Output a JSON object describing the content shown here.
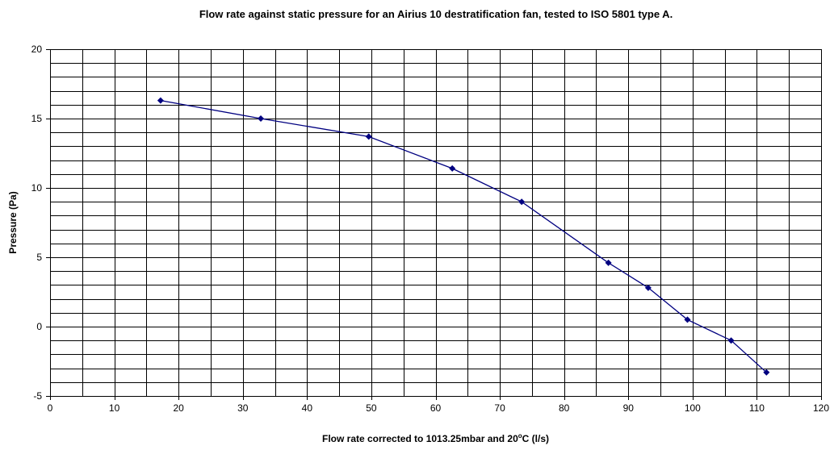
{
  "chart_data": {
    "type": "line",
    "title": "Flow rate against static pressure for an Airius 10 destratification fan, tested to ISO 5801 type A.",
    "xlabel": "Flow rate corrected to 1013.25mbar and 20",
    "xlabel_sup": "o",
    "xlabel_tail": "C (l/s)",
    "ylabel": "Pressure (Pa)",
    "xlim": [
      0,
      120
    ],
    "ylim": [
      -5,
      20
    ],
    "x_major_ticks": [
      0,
      10,
      20,
      30,
      40,
      50,
      60,
      70,
      80,
      90,
      100,
      110,
      120
    ],
    "x_minor_step": 5,
    "y_major_ticks": [
      -5,
      0,
      5,
      10,
      15,
      20
    ],
    "y_minor_step": 1,
    "grid": true,
    "series": [
      {
        "x": [
          17.2,
          32.8,
          49.6,
          62.6,
          73.4,
          86.9,
          93.1,
          99.2,
          106.0,
          111.5
        ],
        "y": [
          16.3,
          15.0,
          13.7,
          11.4,
          9.0,
          4.6,
          2.8,
          0.5,
          -1.0,
          -3.3
        ]
      }
    ],
    "colors": {
      "line": "#000080",
      "marker": "#000080",
      "grid": "#000000",
      "background": "#ffffff"
    },
    "marker": "diamond"
  }
}
